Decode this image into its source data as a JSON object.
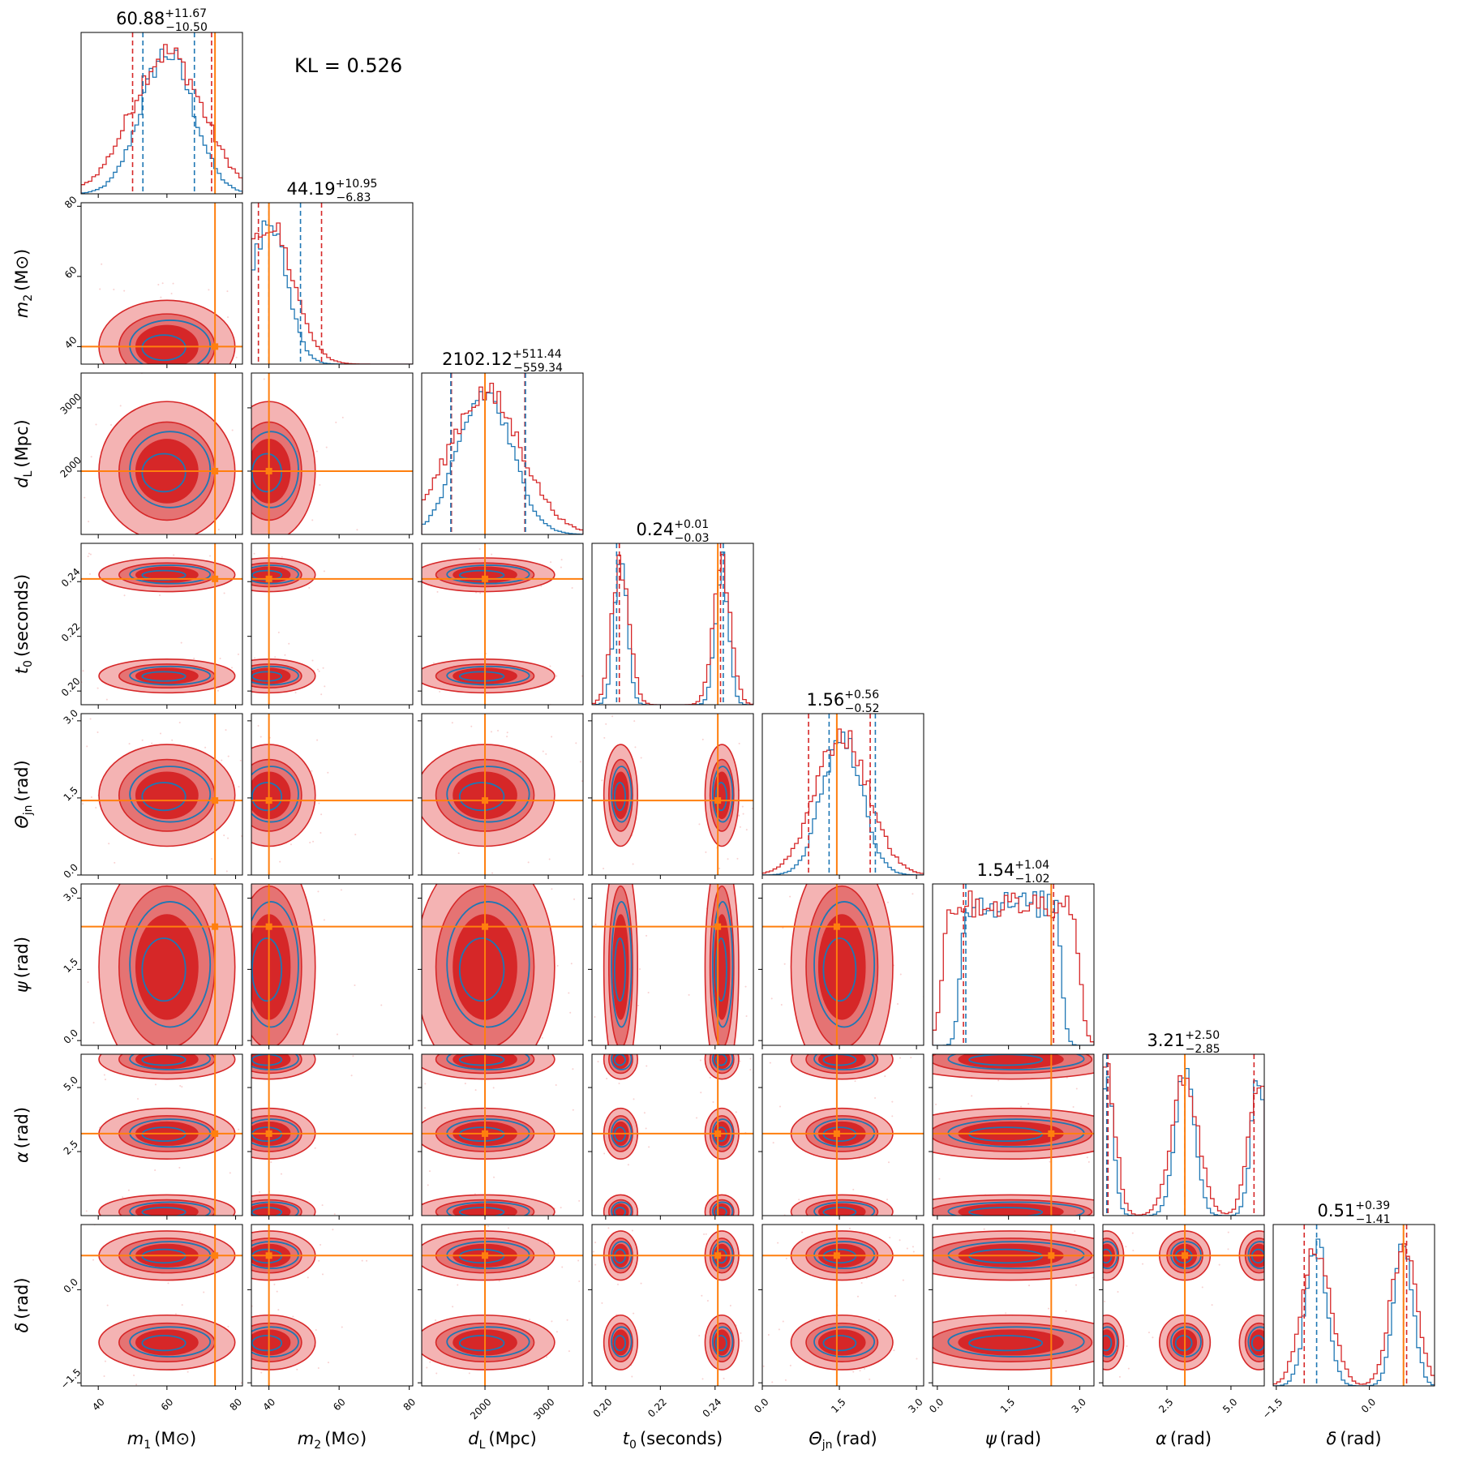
{
  "kl_text": "KL = 0.526",
  "colors": {
    "prior_series": "#1f77b4",
    "posterior_series": "#d62728",
    "truth": "#ff7f0e",
    "fill_light": "#f4b3b3",
    "fill_mid": "#e57373",
    "fill_dark": "#d62728"
  },
  "chart_data": {
    "type": "corner",
    "parameters": [
      {
        "key": "m1",
        "label": "m1 (M⊙)",
        "sym": "m",
        "sub": "1",
        "unit": "(M⊙)",
        "range": [
          35,
          82
        ],
        "ticks": [
          40,
          60,
          80
        ],
        "truth": 74,
        "title_main": "60.88",
        "title_plus": "+11.67",
        "title_minus": "−10.50"
      },
      {
        "key": "m2",
        "label": "m2 (M⊙)",
        "sym": "m",
        "sub": "2",
        "unit": "(M⊙)",
        "range": [
          35,
          81
        ],
        "ticks": [
          40,
          60,
          80
        ],
        "truth": 40,
        "title_main": "44.19",
        "title_plus": "+10.95",
        "title_minus": "−6.83"
      },
      {
        "key": "dL",
        "label": "dL (Mpc)",
        "sym": "d",
        "sub": "L",
        "unit": "(Mpc)",
        "range": [
          1000,
          3550
        ],
        "ticks": [
          2000,
          3000
        ],
        "truth": 2000,
        "title_main": "2102.12",
        "title_plus": "+511.44",
        "title_minus": "−559.34"
      },
      {
        "key": "t0",
        "label": "t0 (seconds)",
        "sym": "t",
        "sub": "0",
        "unit": "(seconds)",
        "range": [
          0.195,
          0.254
        ],
        "ticks": [
          0.2,
          0.22,
          0.24
        ],
        "tick_labels": [
          "0.20",
          "0.22",
          "0.24"
        ],
        "truth": 0.241,
        "title_main": "0.24",
        "title_plus": "+0.01",
        "title_minus": "−0.03"
      },
      {
        "key": "theta_jn",
        "label": "Θjn (rad)",
        "sym": "Θ",
        "sub": "jn",
        "unit": "(rad)",
        "range": [
          0.0,
          3.14
        ],
        "ticks": [
          0.0,
          1.5,
          3.0
        ],
        "tick_labels": [
          "0.0",
          "1.5",
          "3.0"
        ],
        "truth": 1.45,
        "title_main": "1.56",
        "title_plus": "+0.56",
        "title_minus": "−0.52"
      },
      {
        "key": "psi",
        "label": "ψ (rad)",
        "sym": "ψ",
        "sub": "",
        "unit": "(rad)",
        "range": [
          -0.1,
          3.3
        ],
        "ticks": [
          0.0,
          1.5,
          3.0
        ],
        "tick_labels": [
          "0.0",
          "1.5",
          "3.0"
        ],
        "truth": 2.4,
        "title_main": "1.54",
        "title_plus": "+1.04",
        "title_minus": "−1.02"
      },
      {
        "key": "alpha",
        "label": "α (rad)",
        "sym": "α",
        "sub": "",
        "unit": "(rad)",
        "range": [
          0.0,
          6.3
        ],
        "ticks": [
          2.5,
          5.0
        ],
        "tick_labels": [
          "2.5",
          "5.0"
        ],
        "truth": 3.2,
        "title_main": "3.21",
        "title_plus": "+2.50",
        "title_minus": "−2.85"
      },
      {
        "key": "delta",
        "label": "δ (rad)",
        "sym": "δ",
        "sub": "",
        "unit": "(rad)",
        "range": [
          -1.55,
          1.05
        ],
        "ticks": [
          -1.5,
          0.0
        ],
        "tick_labels": [
          "−1.5",
          "0.0"
        ],
        "truth": 0.55,
        "title_main": "0.51",
        "title_plus": "+0.39",
        "title_minus": "−1.41"
      }
    ],
    "diagonal_quantile_lines": {
      "posterior": [
        [
          50,
          73
        ],
        [
          37,
          55
        ],
        [
          1470,
          2630
        ],
        [
          0.205,
          0.242
        ],
        [
          0.9,
          2.1
        ],
        [
          0.55,
          2.45
        ],
        [
          0.2,
          5.9
        ],
        [
          -1.05,
          0.6
        ]
      ],
      "prior": [
        [
          53,
          68
        ],
        [
          40,
          49
        ],
        [
          1460,
          2640
        ],
        [
          0.204,
          0.243
        ],
        [
          1.3,
          2.2
        ],
        [
          0.6,
          2.4
        ],
        [
          0.15,
          3.2
        ],
        [
          -0.85,
          0.55
        ]
      ]
    }
  }
}
